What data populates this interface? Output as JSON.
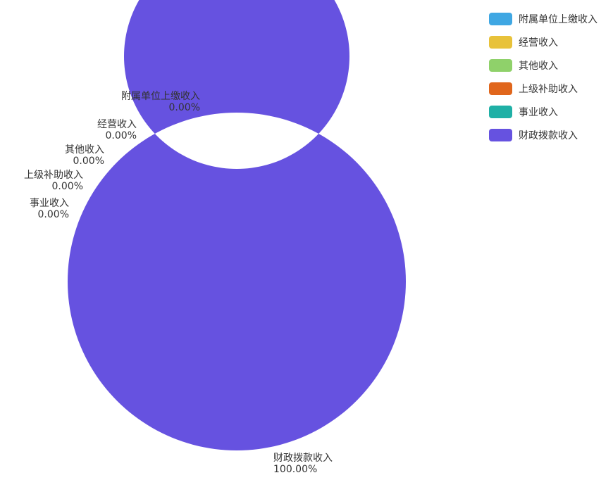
{
  "chart_data": {
    "type": "pie",
    "categories": [
      "附属单位上缴收入",
      "经营收入",
      "其他收入",
      "上级补助收入",
      "事业收入",
      "财政拨款收入"
    ],
    "values": [
      0,
      0,
      0,
      0,
      0,
      100
    ],
    "percent_labels": [
      "0.00%",
      "0.00%",
      "0.00%",
      "0.00%",
      "0.00%",
      "100.00%"
    ],
    "colors": [
      "#3fa7e3",
      "#e8c23a",
      "#8fd16a",
      "#e0661c",
      "#1fb0a6",
      "#6652e0"
    ],
    "donut": true,
    "legend_position": "top-right"
  }
}
